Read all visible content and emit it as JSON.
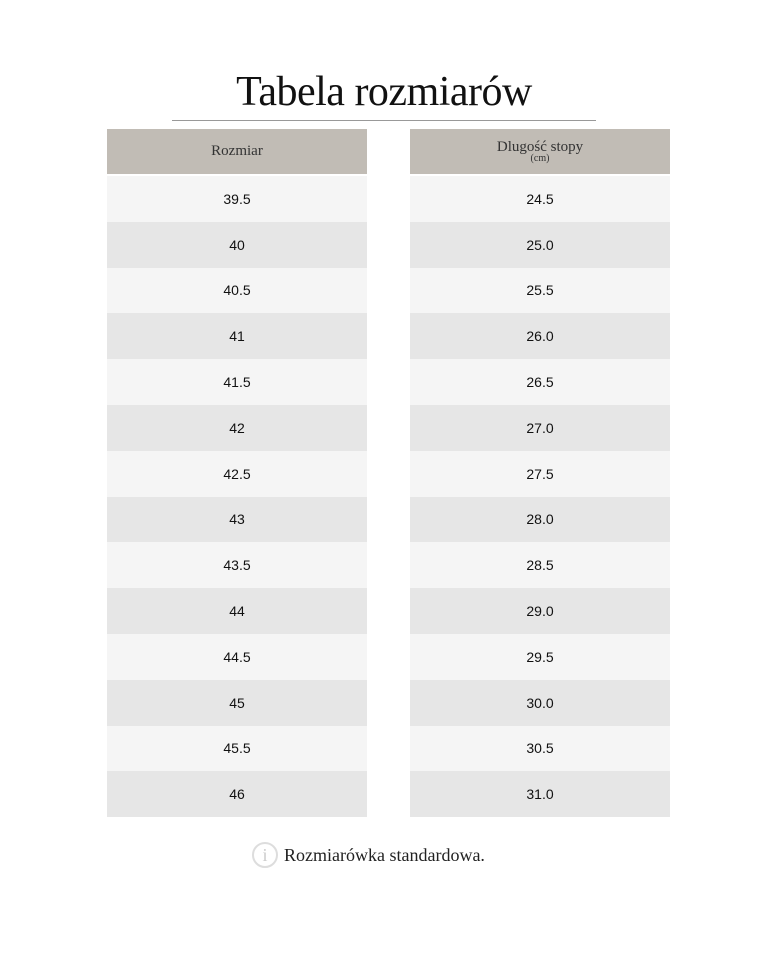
{
  "title": "Tabela rozmiarów",
  "columns": {
    "size": "Rozmiar",
    "length": "Dlugość stopy",
    "length_unit": "(cm)"
  },
  "rows": [
    {
      "size": "39.5",
      "length": "24.5"
    },
    {
      "size": "40",
      "length": "25.0"
    },
    {
      "size": "40.5",
      "length": "25.5"
    },
    {
      "size": "41",
      "length": "26.0"
    },
    {
      "size": "41.5",
      "length": "26.5"
    },
    {
      "size": "42",
      "length": "27.0"
    },
    {
      "size": "42.5",
      "length": "27.5"
    },
    {
      "size": "43",
      "length": "28.0"
    },
    {
      "size": "43.5",
      "length": "28.5"
    },
    {
      "size": "44",
      "length": "29.0"
    },
    {
      "size": "44.5",
      "length": "29.5"
    },
    {
      "size": "45",
      "length": "30.0"
    },
    {
      "size": "45.5",
      "length": "30.5"
    },
    {
      "size": "46",
      "length": "31.0"
    }
  ],
  "note": {
    "icon": "info-icon",
    "text": "Rozmiarówka standardowa."
  }
}
